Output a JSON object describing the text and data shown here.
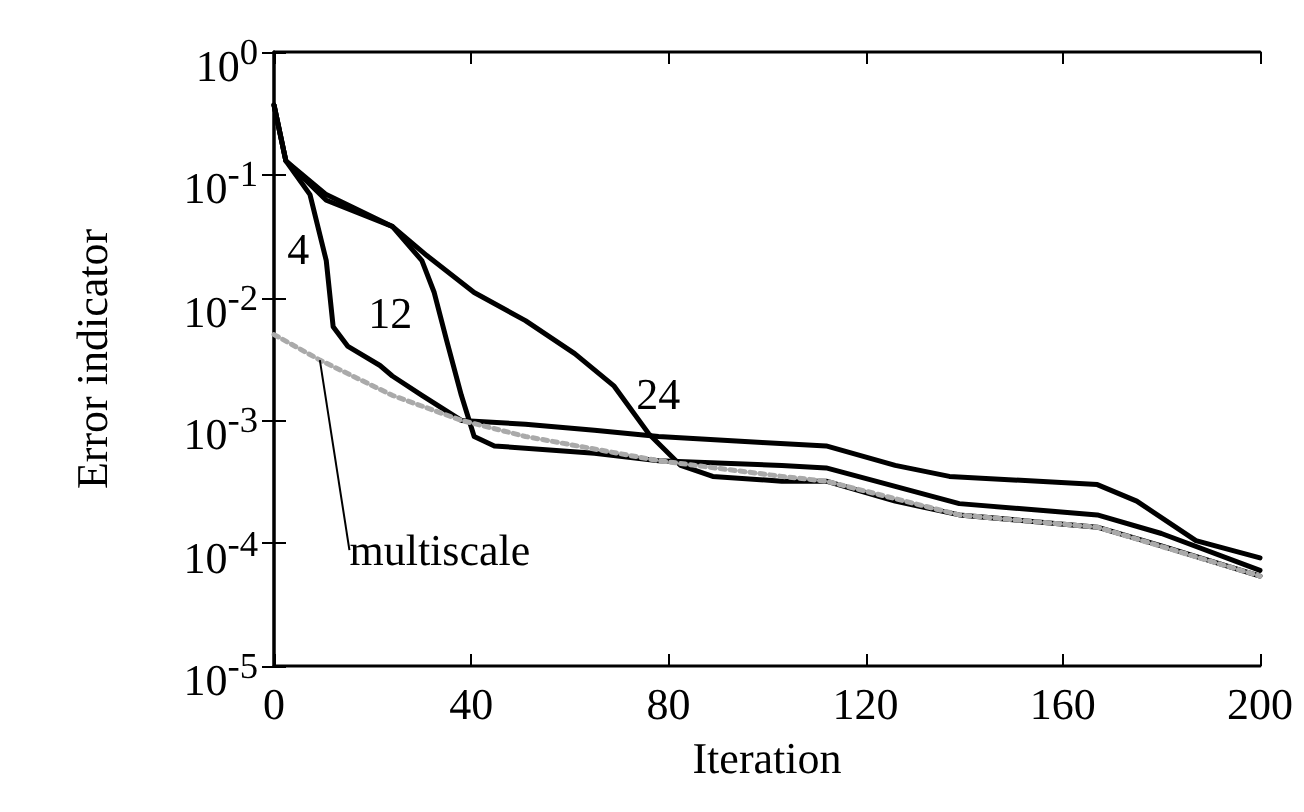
{
  "chart_data": {
    "type": "line",
    "xlabel": "Iteration",
    "ylabel": "Error indicator",
    "log": "y",
    "grid": false,
    "legend": false,
    "marker": "none",
    "xlim": [
      0,
      200
    ],
    "xticks": [
      0,
      40,
      80,
      120,
      160,
      200
    ],
    "ylim": [
      1e-05,
      1
    ],
    "yticks": [
      {
        "value": 1,
        "label": "10$^{0}$"
      },
      {
        "value": 0.1,
        "label": "10$^{-1}$"
      },
      {
        "value": 0.01,
        "label": "10$^{-2}$"
      },
      {
        "value": 0.001,
        "label": "10$^{-3}$"
      },
      {
        "value": 0.0001,
        "label": "10$^{-4}$"
      },
      {
        "value": 1e-05,
        "label": "10$^{-5}$"
      }
    ],
    "series": [
      {
        "name": "4",
        "color": "#000000",
        "line_style": "solid",
        "x": [
          0,
          2.4,
          7.3,
          10.6,
          12,
          15,
          21.5,
          24,
          30,
          38,
          51,
          65,
          78,
          99,
          112,
          126,
          137,
          167,
          175,
          187,
          200
        ],
        "values": [
          0.37,
          0.13,
          0.069,
          0.02,
          0.0058,
          0.004,
          0.0028,
          0.0023,
          0.0016,
          0.001,
          0.00093,
          0.00083,
          0.00074,
          0.00066,
          0.00062,
          0.00043,
          0.00035,
          0.0003,
          0.00022,
          0.000105,
          7.6e-05
        ]
      },
      {
        "name": "12",
        "color": "#000000",
        "line_style": "solid",
        "x": [
          0,
          2.4,
          10.6,
          24,
          30,
          32.5,
          35,
          38,
          40.6,
          44.7,
          65,
          78,
          103,
          112,
          126,
          139,
          167,
          180,
          200
        ],
        "values": [
          0.37,
          0.13,
          0.062,
          0.038,
          0.02,
          0.011,
          0.0045,
          0.0016,
          0.00074,
          0.00062,
          0.00054,
          0.00047,
          0.00043,
          0.00041,
          0.00029,
          0.00021,
          0.00017,
          0.00012,
          6e-05
        ]
      },
      {
        "name": "24",
        "color": "#000000",
        "line_style": "solid",
        "x": [
          0,
          2.4,
          10.6,
          24,
          31,
          40.6,
          51,
          61,
          69,
          76,
          82.5,
          89,
          103,
          112,
          126,
          139,
          167,
          180,
          200
        ],
        "values": [
          0.37,
          0.13,
          0.069,
          0.038,
          0.022,
          0.011,
          0.0065,
          0.0035,
          0.0019,
          0.00078,
          0.00043,
          0.00035,
          0.00032,
          0.00032,
          0.00022,
          0.00017,
          0.000135,
          9.5e-05,
          5.4e-05
        ]
      },
      {
        "name": "multiscale",
        "color": "#aaaaaa",
        "line_style": "dotted",
        "x": [
          0,
          9.3,
          24,
          38,
          51,
          78,
          103,
          112,
          139,
          167,
          200
        ],
        "values": [
          0.005,
          0.0031,
          0.0016,
          0.001,
          0.00074,
          0.00047,
          0.00035,
          0.00032,
          0.00017,
          0.000135,
          5.4e-05
        ]
      }
    ]
  }
}
